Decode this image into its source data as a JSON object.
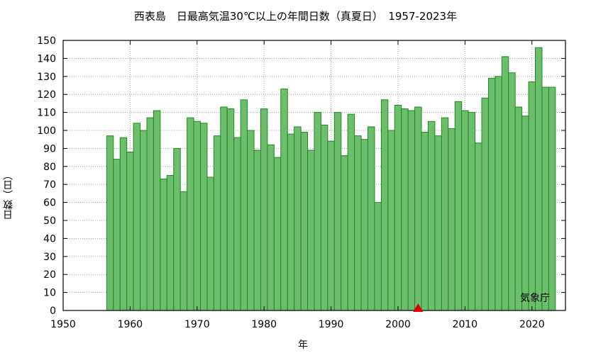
{
  "chart_data": {
    "type": "bar",
    "title": "西表島　日最高気温30℃以上の年間日数（真夏日）　1957-2023年",
    "xlabel": "年",
    "ylabel": "日数（日）",
    "source": "気象庁",
    "xlim": [
      1950,
      2025
    ],
    "ylim": [
      0,
      150
    ],
    "xticks": [
      1950,
      1960,
      1970,
      1980,
      1990,
      2000,
      2010,
      2020
    ],
    "yticks": [
      0,
      10,
      20,
      30,
      40,
      50,
      60,
      70,
      80,
      90,
      100,
      110,
      120,
      130,
      140,
      150
    ],
    "grid": true,
    "bar_color": "#6cbd6c",
    "bar_edge_color": "#1f8a1f",
    "marker": {
      "x": 2003,
      "y": 0,
      "shape": "triangle",
      "color": "#e00000"
    },
    "x": [
      1957,
      1958,
      1959,
      1960,
      1961,
      1962,
      1963,
      1964,
      1965,
      1966,
      1967,
      1968,
      1969,
      1970,
      1971,
      1972,
      1973,
      1974,
      1975,
      1976,
      1977,
      1978,
      1979,
      1980,
      1981,
      1982,
      1983,
      1984,
      1985,
      1986,
      1987,
      1988,
      1989,
      1990,
      1991,
      1992,
      1993,
      1994,
      1995,
      1996,
      1997,
      1998,
      1999,
      2000,
      2001,
      2002,
      2003,
      2004,
      2005,
      2006,
      2007,
      2008,
      2009,
      2010,
      2011,
      2012,
      2013,
      2014,
      2015,
      2016,
      2017,
      2018,
      2019,
      2020,
      2021,
      2022,
      2023
    ],
    "values": [
      97,
      84,
      96,
      88,
      104,
      100,
      107,
      111,
      73,
      75,
      90,
      66,
      107,
      105,
      104,
      74,
      97,
      113,
      112,
      96,
      117,
      100,
      89,
      112,
      92,
      85,
      123,
      98,
      102,
      99,
      89,
      110,
      103,
      94,
      110,
      86,
      109,
      97,
      95,
      102,
      60,
      117,
      100,
      114,
      112,
      111,
      113,
      99,
      105,
      97,
      107,
      101,
      116,
      111,
      110,
      93,
      118,
      129,
      130,
      141,
      132,
      113,
      108,
      127,
      146,
      124,
      124
    ]
  }
}
